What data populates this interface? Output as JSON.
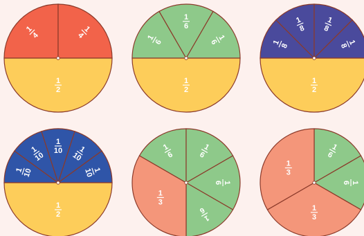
{
  "colors": {
    "background": "#fdf1ee",
    "outline": "#8b3a2a",
    "red": "#f2634a",
    "green": "#8ec98a",
    "navy": "#4a4a9c",
    "blue": "#2f55a8",
    "yellow": "#fdcd5a",
    "salmon": "#f4967a",
    "label": "#ffffff"
  },
  "circles": [
    {
      "name": "circle-halves-and-quarters",
      "groups": [
        {
          "name": "top-quarters",
          "color": "red",
          "start": -90,
          "span": 180,
          "count": 2,
          "fraction": {
            "num": "1",
            "den": "4"
          }
        },
        {
          "name": "bottom-half",
          "color": "yellow",
          "start": 90,
          "span": 180,
          "count": 1,
          "fraction": {
            "num": "1",
            "den": "2"
          }
        }
      ]
    },
    {
      "name": "circle-halves-and-sixths",
      "groups": [
        {
          "name": "top-sixths",
          "color": "green",
          "start": -90,
          "span": 180,
          "count": 3,
          "fraction": {
            "num": "1",
            "den": "6"
          }
        },
        {
          "name": "bottom-half",
          "color": "yellow",
          "start": 90,
          "span": 180,
          "count": 1,
          "fraction": {
            "num": "1",
            "den": "2"
          }
        }
      ]
    },
    {
      "name": "circle-halves-and-eighths",
      "groups": [
        {
          "name": "top-eighths",
          "color": "navy",
          "start": -90,
          "span": 180,
          "count": 4,
          "fraction": {
            "num": "1",
            "den": "8"
          }
        },
        {
          "name": "bottom-half",
          "color": "yellow",
          "start": 90,
          "span": 180,
          "count": 1,
          "fraction": {
            "num": "1",
            "den": "2"
          }
        }
      ]
    },
    {
      "name": "circle-halves-and-tenths",
      "groups": [
        {
          "name": "top-tenths",
          "color": "blue",
          "start": -90,
          "span": 180,
          "count": 5,
          "fraction": {
            "num": "1",
            "den": "10"
          }
        },
        {
          "name": "bottom-half",
          "color": "yellow",
          "start": 90,
          "span": 180,
          "count": 1,
          "fraction": {
            "num": "1",
            "den": "2"
          }
        }
      ]
    },
    {
      "name": "circle-thirds-and-sixths",
      "groups": [
        {
          "name": "top-sixths",
          "color": "green",
          "start": -60,
          "span": 240,
          "count": 4,
          "fraction": {
            "num": "1",
            "den": "6"
          }
        },
        {
          "name": "bottom-third",
          "color": "salmon",
          "start": 180,
          "span": 120,
          "count": 1,
          "fraction": {
            "num": "1",
            "den": "3"
          }
        }
      ]
    },
    {
      "name": "circle-thirds-sixths",
      "groups": [
        {
          "name": "right-sixths",
          "color": "green",
          "start": 0,
          "span": 120,
          "count": 2,
          "fraction": {
            "num": "1",
            "den": "6"
          }
        },
        {
          "name": "bottom-third",
          "color": "salmon",
          "start": 120,
          "span": 120,
          "count": 1,
          "fraction": {
            "num": "1",
            "den": "3"
          }
        },
        {
          "name": "left-third",
          "color": "salmon",
          "start": 240,
          "span": 120,
          "count": 1,
          "fraction": {
            "num": "1",
            "den": "3"
          }
        }
      ]
    }
  ]
}
